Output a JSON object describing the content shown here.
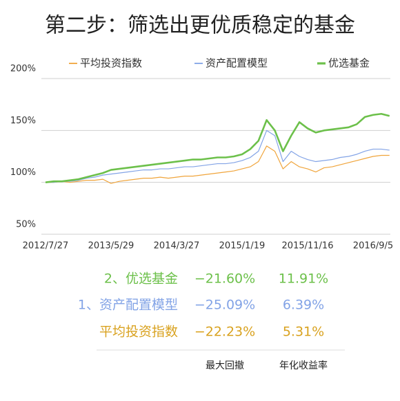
{
  "chart_data": {
    "type": "line",
    "title": "第二步：筛选出更优质稳定的基金",
    "categories": [
      "2012/7/27",
      null,
      null,
      null,
      null,
      null,
      null,
      null,
      "2013/5/29",
      null,
      null,
      null,
      null,
      null,
      null,
      null,
      "2014/3/27",
      null,
      null,
      null,
      null,
      null,
      null,
      null,
      "2015/1/19",
      null,
      null,
      null,
      null,
      null,
      null,
      null,
      "2015/11/16",
      null,
      null,
      null,
      null,
      null,
      null,
      null,
      "2016/9/5",
      null,
      null
    ],
    "series": [
      {
        "name": "平均投资指数",
        "color": "#f0a43a",
        "width": 1.2,
        "values": [
          100,
          100,
          101,
          100,
          101,
          102,
          102,
          103,
          99,
          101,
          102,
          103,
          104,
          104,
          105,
          104,
          105,
          106,
          106,
          107,
          108,
          109,
          110,
          111,
          113,
          115,
          120,
          135,
          130,
          113,
          120,
          115,
          113,
          110,
          114,
          115,
          117,
          119,
          121,
          123,
          125,
          126,
          126
        ]
      },
      {
        "name": "资产配置模型",
        "color": "#82a3e6",
        "width": 1.2,
        "values": [
          100,
          100,
          101,
          101,
          102,
          104,
          105,
          107,
          108,
          109,
          110,
          111,
          112,
          112,
          113,
          113,
          114,
          115,
          115,
          116,
          117,
          118,
          118,
          119,
          121,
          124,
          130,
          150,
          145,
          120,
          130,
          125,
          122,
          120,
          121,
          122,
          124,
          125,
          127,
          130,
          132,
          132,
          131
        ]
      },
      {
        "name": "优选基金",
        "color": "#6cc04a",
        "width": 2.6,
        "values": [
          100,
          101,
          101,
          102,
          103,
          105,
          107,
          109,
          112,
          113,
          114,
          115,
          116,
          117,
          118,
          119,
          120,
          121,
          122,
          122,
          123,
          124,
          124,
          125,
          127,
          132,
          140,
          160,
          150,
          130,
          145,
          158,
          152,
          148,
          150,
          151,
          152,
          153,
          156,
          163,
          165,
          166,
          164
        ]
      }
    ],
    "ylim": [
      50,
      200
    ],
    "yticks": [
      {
        "value": 50,
        "label": "50%"
      },
      {
        "value": 100,
        "label": "100%"
      },
      {
        "value": 150,
        "label": "150%"
      },
      {
        "value": 200,
        "label": "200%"
      }
    ],
    "grid": true,
    "legend": "top"
  },
  "table": {
    "columns": [
      "最大回撤",
      "年化收益率"
    ],
    "rows": [
      {
        "color": "#6cc04a",
        "cells": [
          "2、优选基金",
          "−21.60%",
          "11.91%"
        ]
      },
      {
        "color": "#82a3e6",
        "cells": [
          "1、资产配置模型",
          "−25.09%",
          "6.39%"
        ]
      },
      {
        "color": "#d9a21f",
        "cells": [
          "平均投资指数",
          "−22.23%",
          "5.31%"
        ]
      }
    ]
  }
}
